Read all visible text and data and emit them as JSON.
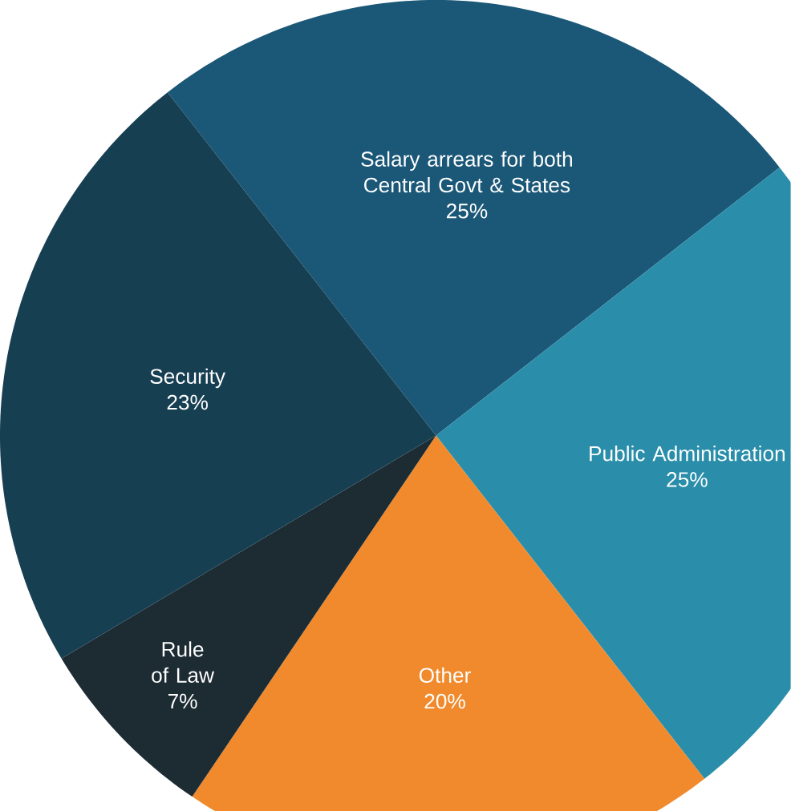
{
  "chart_data": {
    "type": "pie",
    "categories": [
      "Salary arrears for both Central Govt & States",
      "Public Administration",
      "Other",
      "Rule of Law",
      "Security"
    ],
    "values": [
      25,
      25,
      20,
      7,
      23
    ],
    "value_labels": [
      "25%",
      "25%",
      "20%",
      "7%",
      "23%"
    ],
    "colors": [
      "#1b5878",
      "#2a8eaa",
      "#f08a2c",
      "#1d2b33",
      "#173f52"
    ]
  }
}
